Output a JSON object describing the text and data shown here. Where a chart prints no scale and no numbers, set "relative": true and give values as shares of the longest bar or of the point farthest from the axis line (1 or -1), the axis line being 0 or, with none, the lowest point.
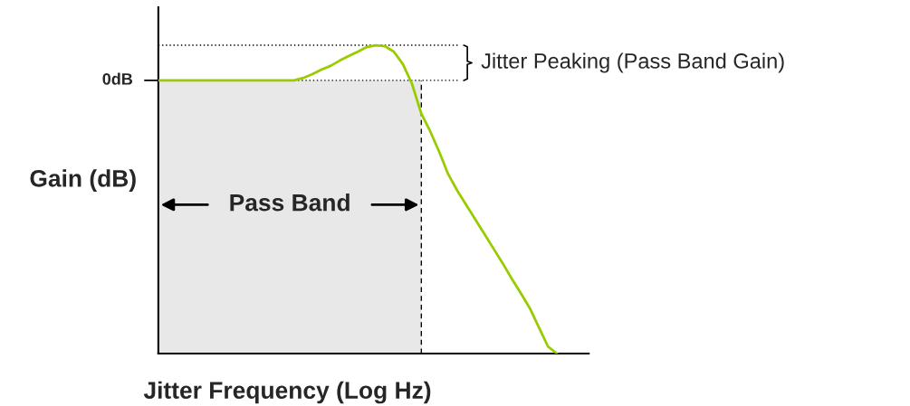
{
  "chart_data": {
    "type": "line",
    "relative": true,
    "xlabel": "Jitter Frequency (Log Hz)",
    "ylabel": "Gain (dB)",
    "categories": [
      null,
      null,
      null,
      null,
      null,
      null,
      null,
      null,
      null,
      null,
      null,
      null,
      null,
      null,
      null,
      null,
      null,
      null,
      null,
      null,
      null,
      null,
      null,
      null,
      null,
      null,
      null,
      null,
      null,
      null,
      null,
      null,
      null,
      null,
      null,
      null,
      null,
      null,
      null,
      null,
      null,
      null,
      null,
      null,
      null
    ],
    "series": [
      {
        "color": "#99cc00",
        "values": [
          0.886,
          0.886,
          0.886,
          0.886,
          0.886,
          0.886,
          0.886,
          0.886,
          0.886,
          0.886,
          0.886,
          0.886,
          0.886,
          0.886,
          0.886,
          0.886,
          0.894,
          0.906,
          0.921,
          0.933,
          0.95,
          0.965,
          0.979,
          0.994,
          1.0,
          0.997,
          0.979,
          0.938,
          0.874,
          0.78,
          0.721,
          0.654,
          0.581,
          0.528,
          0.481,
          0.434,
          0.387,
          0.34,
          0.293,
          0.243,
          0.196,
          0.147,
          0.085,
          0.023,
          0
        ]
      }
    ],
    "ref_lines": [
      {
        "axis": "y",
        "value": 0.886,
        "label": "0dB",
        "line_style": "dotted",
        "color": "#000000"
      },
      {
        "axis": "y",
        "value": 1.0,
        "line_style": "dotted",
        "color": "#000000"
      }
    ],
    "annotations": [
      "Pass Band",
      "Jitter Peaking (Pass Band Gain)"
    ],
    "legend": false,
    "marker": "none",
    "line_style": "solid"
  }
}
